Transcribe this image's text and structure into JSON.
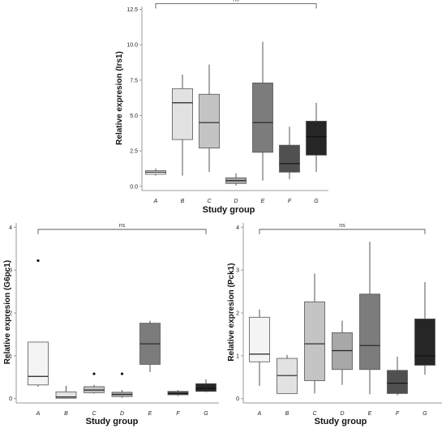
{
  "chart_data": [
    {
      "type": "box",
      "ylabel": "Relative expresion (Irs1)",
      "xlabel": "Study group",
      "ylim": [
        -0.3,
        12.7
      ],
      "yticks": [
        0.0,
        2.5,
        5.0,
        7.5,
        10.0,
        12.5
      ],
      "ytick_labels": [
        "0.0",
        "2.5",
        "5.0",
        "7.5",
        "10.0",
        "12.5"
      ],
      "categories": [
        "A",
        "B",
        "C",
        "D",
        "E",
        "F",
        "G"
      ],
      "boxes": [
        {
          "group": "A",
          "whisker_low": 0.75,
          "q1": 0.85,
          "median": 1.0,
          "q3": 1.1,
          "whisker_high": 1.25,
          "outliers": [],
          "color": "#f4f4f4"
        },
        {
          "group": "B",
          "whisker_low": 0.75,
          "q1": 3.3,
          "median": 5.9,
          "q3": 6.9,
          "whisker_high": 7.9,
          "outliers": [],
          "color": "#e2e2e2"
        },
        {
          "group": "C",
          "whisker_low": 1.0,
          "q1": 2.7,
          "median": 4.5,
          "q3": 6.5,
          "whisker_high": 8.6,
          "outliers": [],
          "color": "#c4c4c4"
        },
        {
          "group": "D",
          "whisker_low": 0.05,
          "q1": 0.2,
          "median": 0.4,
          "q3": 0.6,
          "whisker_high": 0.9,
          "outliers": [],
          "color": "#a8a8a8"
        },
        {
          "group": "E",
          "whisker_low": 0.4,
          "q1": 2.4,
          "median": 4.5,
          "q3": 7.3,
          "whisker_high": 10.2,
          "outliers": [],
          "color": "#7c7c7c"
        },
        {
          "group": "F",
          "whisker_low": 0.5,
          "q1": 1.0,
          "median": 1.6,
          "q3": 2.9,
          "whisker_high": 4.2,
          "outliers": [],
          "color": "#505050"
        },
        {
          "group": "G",
          "whisker_low": 1.0,
          "q1": 2.2,
          "median": 3.5,
          "q3": 4.6,
          "whisker_high": 5.9,
          "outliers": [],
          "color": "#262626"
        }
      ],
      "significance": {
        "label": "ns",
        "from": "A",
        "to": "G",
        "y": 12.9
      }
    },
    {
      "type": "box",
      "ylabel": "Relative expresion (G6pc1)",
      "xlabel": "Study group",
      "ylim": [
        -0.1,
        4.1
      ],
      "yticks": [
        0,
        1,
        2,
        3,
        4
      ],
      "ytick_labels": [
        "0",
        "1",
        "2",
        "3",
        "4"
      ],
      "categories": [
        "A",
        "B",
        "C",
        "D",
        "E",
        "F",
        "G"
      ],
      "boxes": [
        {
          "group": "A",
          "whisker_low": 0.28,
          "q1": 0.32,
          "median": 0.52,
          "q3": 1.32,
          "whisker_high": 1.32,
          "outliers": [
            3.22
          ],
          "color": "#f4f4f4"
        },
        {
          "group": "B",
          "whisker_low": 0.0,
          "q1": 0.01,
          "median": 0.04,
          "q3": 0.16,
          "whisker_high": 0.3,
          "outliers": [],
          "color": "#e2e2e2"
        },
        {
          "group": "C",
          "whisker_low": 0.12,
          "q1": 0.14,
          "median": 0.2,
          "q3": 0.28,
          "whisker_high": 0.32,
          "outliers": [
            0.58
          ],
          "color": "#c4c4c4"
        },
        {
          "group": "D",
          "whisker_low": 0.02,
          "q1": 0.05,
          "median": 0.1,
          "q3": 0.15,
          "whisker_high": 0.2,
          "outliers": [
            0.58
          ],
          "color": "#a8a8a8"
        },
        {
          "group": "E",
          "whisker_low": 0.62,
          "q1": 0.8,
          "median": 1.28,
          "q3": 1.76,
          "whisker_high": 1.82,
          "outliers": [],
          "color": "#7c7c7c"
        },
        {
          "group": "F",
          "whisker_low": 0.06,
          "q1": 0.09,
          "median": 0.12,
          "q3": 0.17,
          "whisker_high": 0.2,
          "outliers": [],
          "color": "#505050"
        },
        {
          "group": "G",
          "whisker_low": 0.15,
          "q1": 0.17,
          "median": 0.24,
          "q3": 0.35,
          "whisker_high": 0.45,
          "outliers": [],
          "color": "#262626"
        }
      ],
      "significance": {
        "label": "ns",
        "from": "A",
        "to": "G",
        "y": 3.95
      }
    },
    {
      "type": "box",
      "ylabel": "Relative expresion (Pck1)",
      "xlabel": "Study group",
      "ylim": [
        -0.1,
        4.1
      ],
      "yticks": [
        0,
        1,
        2,
        3,
        4
      ],
      "ytick_labels": [
        "0",
        "1",
        "2",
        "3",
        "4"
      ],
      "categories": [
        "A",
        "B",
        "C",
        "D",
        "E",
        "F",
        "G"
      ],
      "boxes": [
        {
          "group": "A",
          "whisker_low": 0.3,
          "q1": 0.86,
          "median": 1.04,
          "q3": 1.9,
          "whisker_high": 2.08,
          "outliers": [],
          "color": "#f4f4f4"
        },
        {
          "group": "B",
          "whisker_low": 0.12,
          "q1": 0.12,
          "median": 0.54,
          "q3": 0.94,
          "whisker_high": 1.02,
          "outliers": [],
          "color": "#e2e2e2"
        },
        {
          "group": "C",
          "whisker_low": 0.12,
          "q1": 0.42,
          "median": 1.28,
          "q3": 2.26,
          "whisker_high": 2.92,
          "outliers": [],
          "color": "#c4c4c4"
        },
        {
          "group": "D",
          "whisker_low": 0.32,
          "q1": 0.68,
          "median": 1.12,
          "q3": 1.54,
          "whisker_high": 1.82,
          "outliers": [],
          "color": "#a8a8a8"
        },
        {
          "group": "E",
          "whisker_low": 0.1,
          "q1": 0.68,
          "median": 1.24,
          "q3": 2.44,
          "whisker_high": 3.66,
          "outliers": [],
          "color": "#7c7c7c"
        },
        {
          "group": "F",
          "whisker_low": 0.08,
          "q1": 0.12,
          "median": 0.36,
          "q3": 0.66,
          "whisker_high": 0.98,
          "outliers": [],
          "color": "#505050"
        },
        {
          "group": "G",
          "whisker_low": 0.56,
          "q1": 0.78,
          "median": 1.0,
          "q3": 1.86,
          "whisker_high": 2.72,
          "outliers": [],
          "color": "#262626"
        }
      ],
      "significance": {
        "label": "ns",
        "from": "A",
        "to": "G",
        "y": 3.95
      }
    }
  ]
}
